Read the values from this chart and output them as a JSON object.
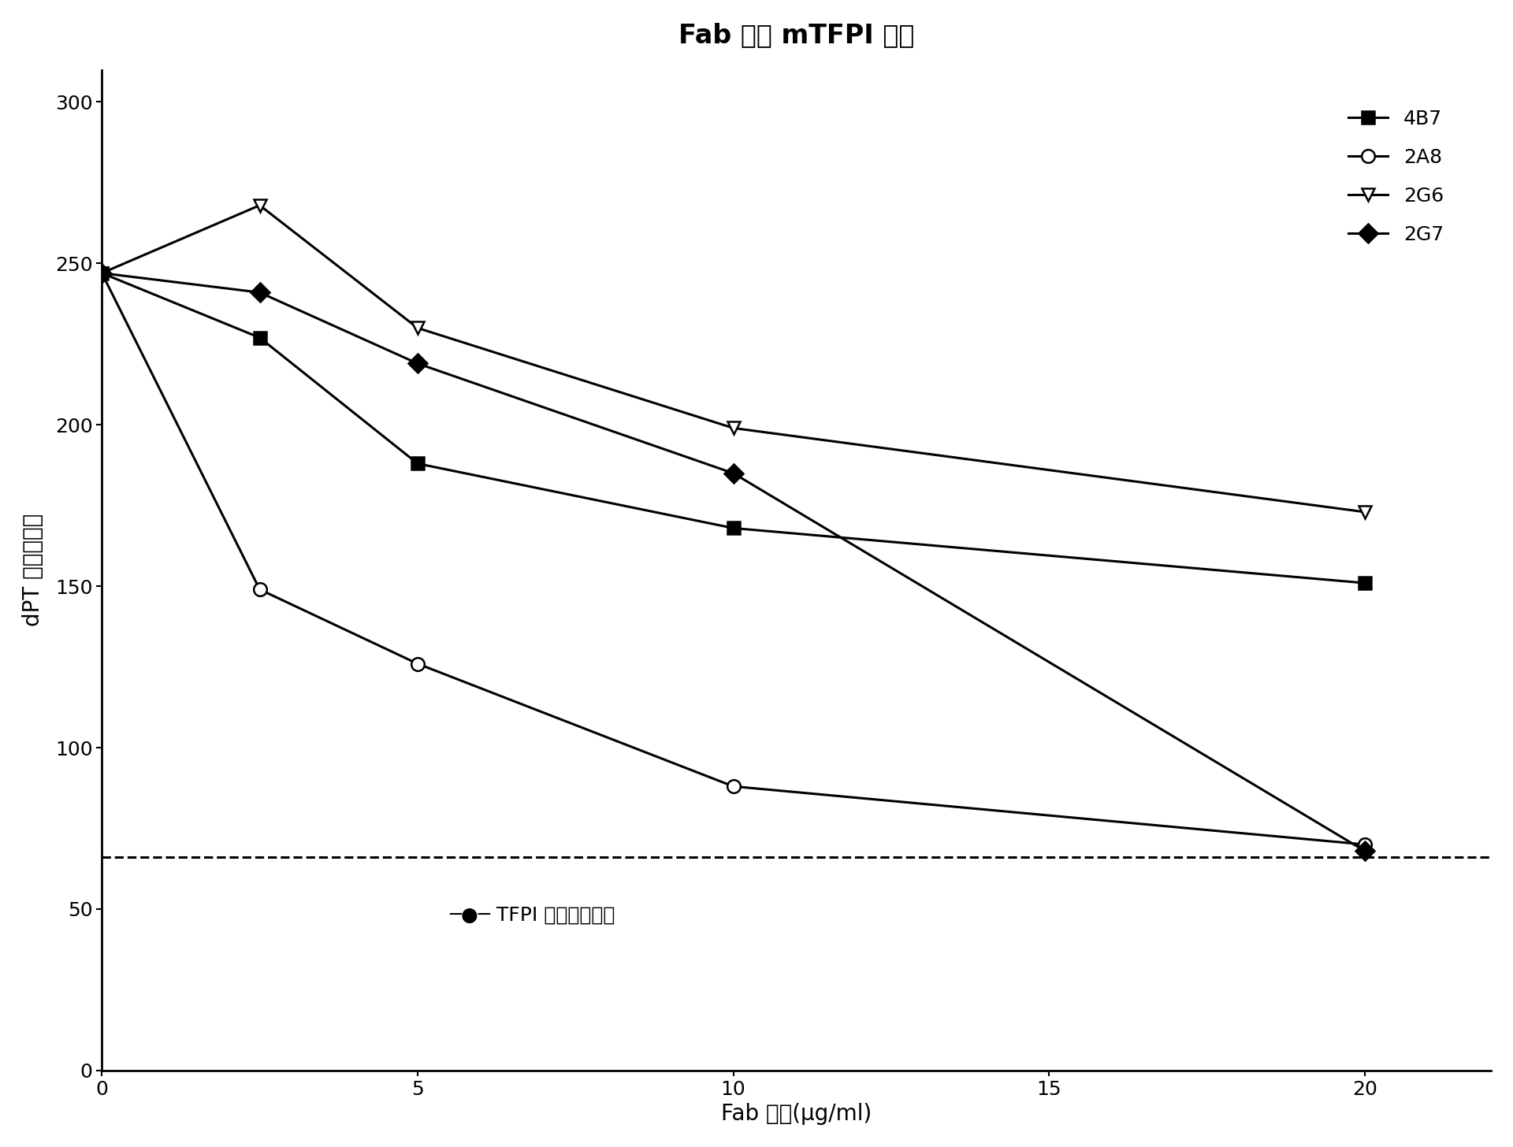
{
  "title": "Fab 抑制 mTFPI 活性",
  "xlabel": "Fab 浓度(μg/ml)",
  "ylabel": "dPT 时间（秒）",
  "xlim": [
    0,
    22
  ],
  "ylim": [
    0,
    310
  ],
  "xticks": [
    0,
    5,
    10,
    15,
    20
  ],
  "yticks": [
    0,
    50,
    100,
    150,
    200,
    250,
    300
  ],
  "series": {
    "4B7": {
      "x": [
        0,
        2.5,
        5,
        10,
        20
      ],
      "y": [
        247,
        227,
        188,
        168,
        151
      ],
      "marker": "s",
      "markerfacecolor": "black"
    },
    "2A8": {
      "x": [
        0,
        2.5,
        5,
        10,
        20
      ],
      "y": [
        247,
        149,
        126,
        88,
        70
      ],
      "marker": "o",
      "markerfacecolor": "white"
    },
    "2G6": {
      "x": [
        0,
        2.5,
        5,
        10,
        20
      ],
      "y": [
        247,
        268,
        230,
        199,
        173
      ],
      "marker": "v",
      "markerfacecolor": "white"
    },
    "2G7": {
      "x": [
        0,
        2.5,
        5,
        10,
        20
      ],
      "y": [
        247,
        241,
        219,
        185,
        68
      ],
      "marker": "D",
      "markerfacecolor": "black"
    }
  },
  "series_order": [
    "4B7",
    "2A8",
    "2G6",
    "2G7"
  ],
  "reference_line_y": 66,
  "reference_label": "TFPI 消减的人血浆",
  "background_color": "#ffffff",
  "title_fontsize": 24,
  "axis_label_fontsize": 20,
  "tick_fontsize": 18,
  "legend_fontsize": 18,
  "annotation_fontsize": 18,
  "linewidth": 2.2,
  "markersize": 12
}
